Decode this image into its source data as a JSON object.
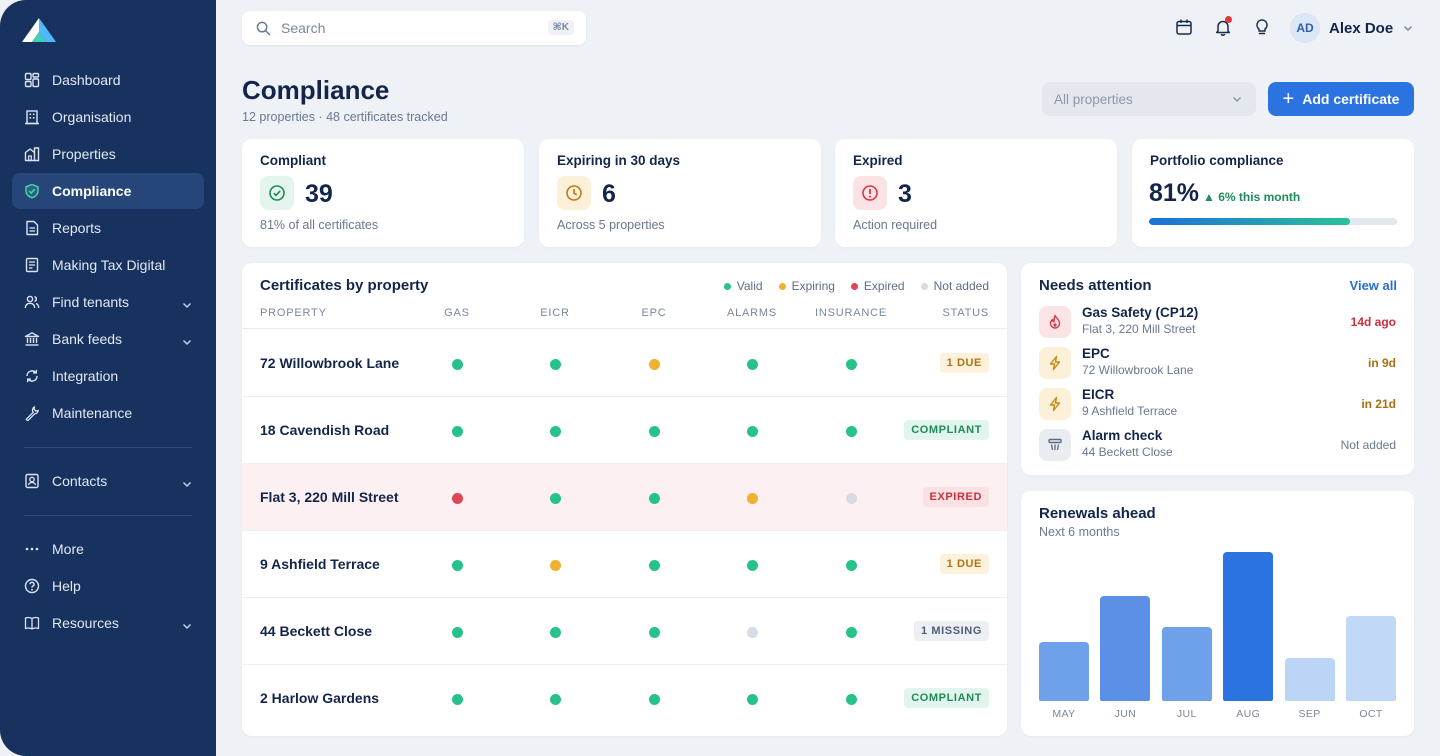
{
  "app": {
    "user_name": "Alex Doe",
    "user_initials": "AD"
  },
  "search": {
    "placeholder": "Search",
    "shortcut": "⌘K"
  },
  "sidebar": {
    "items": [
      {
        "label": "Dashboard",
        "icon": "dashboard-icon"
      },
      {
        "label": "Organisation",
        "icon": "building-icon"
      },
      {
        "label": "Properties",
        "icon": "properties-icon"
      },
      {
        "label": "Compliance",
        "icon": "shield-check-icon",
        "active": true
      },
      {
        "label": "Reports",
        "icon": "document-icon"
      },
      {
        "label": "Making Tax Digital",
        "icon": "tax-document-icon"
      },
      {
        "label": "Find tenants",
        "icon": "users-icon",
        "expandable": true
      },
      {
        "label": "Bank feeds",
        "icon": "bank-icon",
        "expandable": true
      },
      {
        "label": "Integration",
        "icon": "sync-icon"
      },
      {
        "label": "Maintenance",
        "icon": "wrench-icon"
      }
    ],
    "secondary": [
      {
        "label": "Contacts",
        "icon": "contacts-icon",
        "expandable": true
      }
    ],
    "footer": [
      {
        "label": "More",
        "icon": "more-icon"
      },
      {
        "label": "Help",
        "icon": "help-icon"
      },
      {
        "label": "Resources",
        "icon": "book-icon",
        "expandable": true
      }
    ]
  },
  "page": {
    "title": "Compliance",
    "subtitle": "12 properties · 48 certificates tracked",
    "filter_value": "All properties",
    "add_button": "Add certificate"
  },
  "stats": [
    {
      "title": "Compliant",
      "value": "39",
      "note": "81% of all certificates",
      "icon": "check-circle-icon",
      "color": "#1f8a5a",
      "bg": "#e3f5ec"
    },
    {
      "title": "Expiring in 30 days",
      "value": "6",
      "note": "Across 5 properties",
      "icon": "clock-icon",
      "color": "#c07a0e",
      "bg": "#fdf0d9"
    },
    {
      "title": "Expired",
      "value": "3",
      "note": "Action required",
      "icon": "alert-circle-icon",
      "color": "#d33a45",
      "bg": "#fbe2e4"
    }
  ],
  "portfolio": {
    "title": "Portfolio compliance",
    "value": "81%",
    "delta": "6% this month",
    "progress": 0.81
  },
  "certificates": {
    "title": "Certificates by property",
    "legend": [
      {
        "label": "Valid",
        "color": "#27c28a"
      },
      {
        "label": "Expiring",
        "color": "#f0b030"
      },
      {
        "label": "Expired",
        "color": "#e04552"
      },
      {
        "label": "Not added",
        "color": "#d7dbe2"
      }
    ],
    "columns": [
      "PROPERTY",
      "GAS",
      "EICR",
      "EPC",
      "ALARMS",
      "INSURANCE",
      "STATUS"
    ],
    "rows": [
      {
        "property": "72 Willowbrook Lane",
        "states": [
          "valid",
          "valid",
          "expiring",
          "valid",
          "valid"
        ],
        "status": "1 DUE",
        "status_type": "due"
      },
      {
        "property": "18 Cavendish Road",
        "states": [
          "valid",
          "valid",
          "valid",
          "valid",
          "valid"
        ],
        "status": "COMPLIANT",
        "status_type": "ok"
      },
      {
        "property": "Flat 3, 220 Mill Street",
        "states": [
          "expired",
          "valid",
          "valid",
          "expiring",
          "missing"
        ],
        "status": "EXPIRED",
        "status_type": "expired"
      },
      {
        "property": "9 Ashfield Terrace",
        "states": [
          "valid",
          "expiring",
          "valid",
          "valid",
          "valid"
        ],
        "status": "1 DUE",
        "status_type": "due"
      },
      {
        "property": "44 Beckett Close",
        "states": [
          "valid",
          "valid",
          "valid",
          "missing",
          "valid"
        ],
        "status": "1 MISSING",
        "status_type": "missing"
      },
      {
        "property": "2 Harlow Gardens",
        "states": [
          "valid",
          "valid",
          "valid",
          "valid",
          "valid"
        ],
        "status": "COMPLIANT",
        "status_type": "ok"
      }
    ]
  },
  "attention": {
    "title": "Needs attention",
    "view_all": "View all",
    "items": [
      {
        "name": "Gas Safety (CP12)",
        "location": "Flat 3, 220 Mill Street",
        "when": "14d ago",
        "icon": "flame-icon",
        "tone": "red"
      },
      {
        "name": "EPC",
        "location": "72 Willowbrook Lane",
        "when": "in 9d",
        "icon": "bolt-icon",
        "tone": "amber"
      },
      {
        "name": "EICR",
        "location": "9 Ashfield Terrace",
        "when": "in 21d",
        "icon": "bolt-icon",
        "tone": "amber"
      },
      {
        "name": "Alarm check",
        "location": "44 Beckett Close",
        "when": "Not added",
        "icon": "smoke-alarm-icon",
        "tone": "grey"
      }
    ]
  },
  "renewals": {
    "title": "Renewals ahead",
    "subtitle": "Next 6 months"
  },
  "chart_data": {
    "type": "bar",
    "categories": [
      "MAY",
      "JUN",
      "JUL",
      "AUG",
      "SEP",
      "OCT"
    ],
    "values": [
      3.8,
      6.8,
      4.8,
      9.7,
      2.8,
      5.5
    ],
    "ylim": [
      0,
      10
    ],
    "colors": [
      "#6fa0ea",
      "#5b90e6",
      "#6fa0ea",
      "#2a73e0",
      "#bcd4f6",
      "#c2d8f7"
    ],
    "grid": false,
    "legend": "none"
  }
}
